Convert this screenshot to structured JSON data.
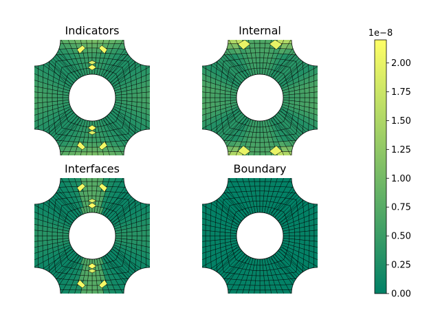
{
  "chart_data": {
    "type": "heatmap",
    "colormap": "summer",
    "panels": [
      {
        "title": "Indicators",
        "pattern": "sum"
      },
      {
        "title": "Internal",
        "pattern": "internal"
      },
      {
        "title": "Interfaces",
        "pattern": "interfaces"
      },
      {
        "title": "Boundary",
        "pattern": "boundary"
      }
    ],
    "colorbar": {
      "min": 0.0,
      "max": 2.2e-08,
      "offset_label": "1e−8",
      "ticks": [
        0.0,
        0.25,
        0.5,
        0.75,
        1.0,
        1.25,
        1.5,
        1.75,
        2.0
      ],
      "tick_labels": [
        "0.00",
        "0.25",
        "0.50",
        "0.75",
        "1.00",
        "1.25",
        "1.50",
        "1.75",
        "2.00"
      ]
    },
    "colors": {
      "low": "#008066",
      "high": "#ffff66",
      "edge": "#000000"
    }
  }
}
